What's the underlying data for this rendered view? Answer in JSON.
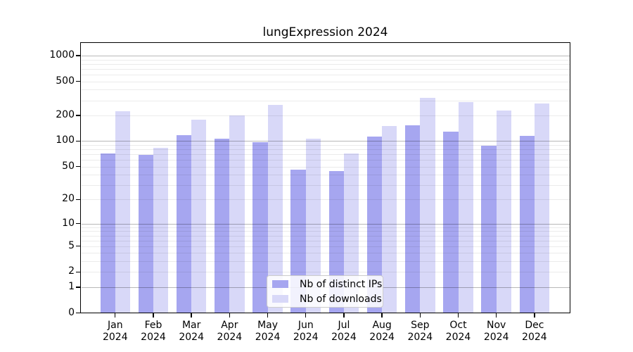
{
  "chart_data": {
    "type": "bar",
    "title": "lungExpression 2024",
    "categories": [
      "Jan",
      "Feb",
      "Mar",
      "Apr",
      "May",
      "Jun",
      "Jul",
      "Aug",
      "Sep",
      "Oct",
      "Nov",
      "Dec"
    ],
    "x_tick_second_line": "2024",
    "series": [
      {
        "name": "Nb of distinct IPs",
        "color": "#a6a6f0",
        "values": [
          72,
          69,
          118,
          107,
          97,
          46,
          44,
          114,
          152,
          128,
          88,
          115
        ]
      },
      {
        "name": "Nb of downloads",
        "color": "#d8d8f8",
        "values": [
          223,
          83,
          180,
          198,
          264,
          106,
          72,
          150,
          320,
          288,
          228,
          274
        ]
      }
    ],
    "yscale": "log1p",
    "yticks": [
      0,
      1,
      2,
      5,
      10,
      20,
      50,
      100,
      200,
      500,
      1000
    ],
    "ylim": [
      0,
      1400
    ],
    "grid": true,
    "legend_position": "lower center"
  }
}
